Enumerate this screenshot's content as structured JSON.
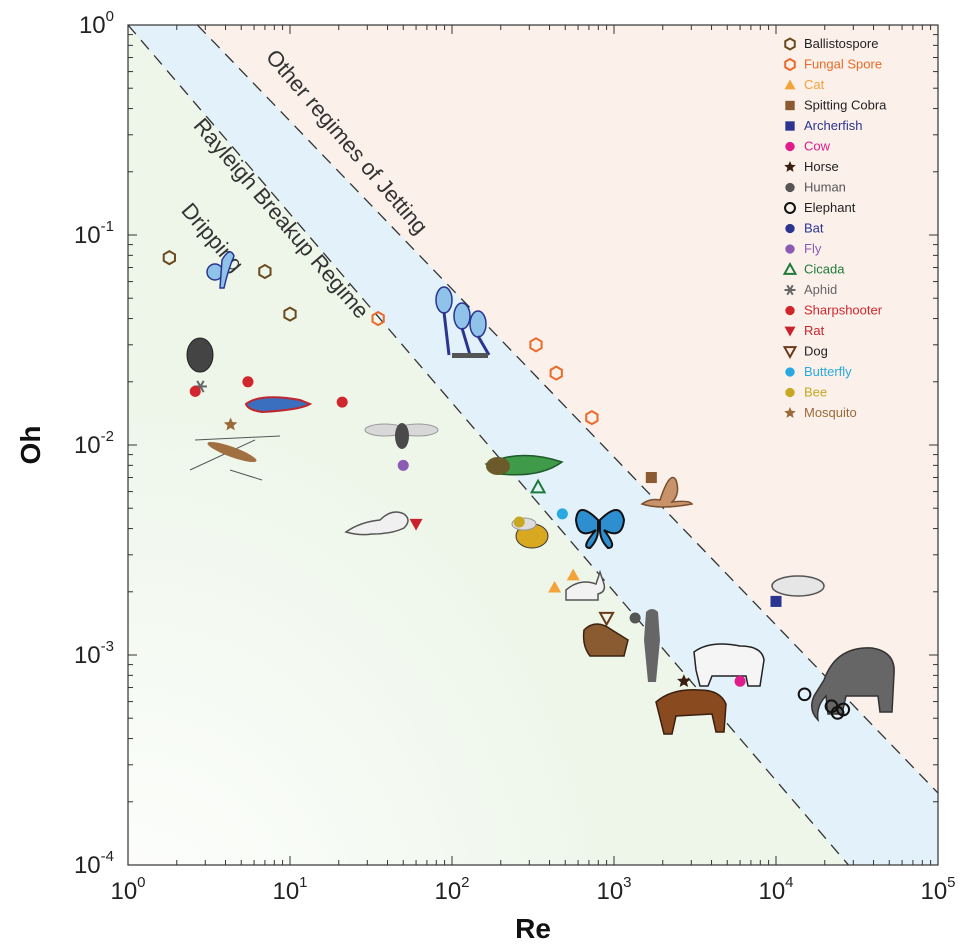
{
  "chart_data": {
    "type": "scatter",
    "xlabel": "Re",
    "ylabel": "Oh",
    "xscale": "log",
    "yscale": "log",
    "xlim": [
      1,
      100000
    ],
    "ylim": [
      0.0001,
      1
    ],
    "x_ticks": [
      {
        "base": "10",
        "exp": "0"
      },
      {
        "base": "10",
        "exp": "1"
      },
      {
        "base": "10",
        "exp": "2"
      },
      {
        "base": "10",
        "exp": "3"
      },
      {
        "base": "10",
        "exp": "4"
      },
      {
        "base": "10",
        "exp": "5"
      }
    ],
    "y_ticks": [
      {
        "base": "10",
        "exp": "-4"
      },
      {
        "base": "10",
        "exp": "-3"
      },
      {
        "base": "10",
        "exp": "-2"
      },
      {
        "base": "10",
        "exp": "-1"
      },
      {
        "base": "10",
        "exp": "0"
      }
    ],
    "regions": [
      {
        "label": "Dripping",
        "color": "#eef6ea"
      },
      {
        "label": "Rayleigh Breakup Regime",
        "color": "#e3f1fa"
      },
      {
        "label": "Other regimes of Jetting",
        "color": "#fbf1ea"
      }
    ],
    "boundaries": [
      {
        "x": [
          1,
          28000
        ],
        "y": [
          1,
          0.0001
        ]
      },
      {
        "x": [
          1,
          100000
        ],
        "y": [
          2.2,
          0.00022
        ]
      }
    ],
    "legend_position": "top-right",
    "series": [
      {
        "name": "Ballistospore",
        "marker": "hexagon-open",
        "color": "#6b4a1e",
        "points": [
          [
            1.8,
            0.078
          ],
          [
            7,
            0.067
          ],
          [
            10,
            0.042
          ]
        ]
      },
      {
        "name": "Fungal Spore",
        "marker": "hexagon-open",
        "color": "#ea6a2a",
        "points": [
          [
            35,
            0.04
          ],
          [
            330,
            0.03
          ],
          [
            440,
            0.022
          ],
          [
            730,
            0.0135
          ]
        ]
      },
      {
        "name": "Cat",
        "marker": "triangle",
        "color": "#f4a23a",
        "points": [
          [
            430,
            0.0021
          ],
          [
            560,
            0.0024
          ]
        ]
      },
      {
        "name": "Spitting Cobra",
        "marker": "square",
        "color": "#8c5a32",
        "points": [
          [
            1700,
            0.007
          ]
        ]
      },
      {
        "name": "Archerfish",
        "marker": "square",
        "color": "#2b3590",
        "points": [
          [
            10000,
            0.0018
          ]
        ]
      },
      {
        "name": "Cow",
        "marker": "circle",
        "color": "#e01c8a",
        "points": [
          [
            6000,
            0.00075
          ]
        ]
      },
      {
        "name": "Horse",
        "marker": "star",
        "color": "#3a1e10",
        "points": [
          [
            2700,
            0.00075
          ]
        ]
      },
      {
        "name": "Human",
        "marker": "circle",
        "color": "#555555",
        "points": [
          [
            1350,
            0.0015
          ]
        ]
      },
      {
        "name": "Elephant",
        "marker": "circle-open",
        "color": "#111111",
        "points": [
          [
            15000,
            0.00065
          ],
          [
            22000,
            0.00057
          ],
          [
            24000,
            0.00053
          ],
          [
            26000,
            0.00055
          ]
        ]
      },
      {
        "name": "Bat",
        "marker": "circle",
        "color": "#2b3590",
        "points": []
      },
      {
        "name": "Fly",
        "marker": "circle",
        "color": "#8b5ab3",
        "points": [
          [
            50,
            0.008
          ]
        ]
      },
      {
        "name": "Cicada",
        "marker": "triangle-open",
        "color": "#1e7a3a",
        "points": [
          [
            340,
            0.0063
          ]
        ]
      },
      {
        "name": "Aphid",
        "marker": "asterisk",
        "color": "#666666",
        "points": [
          [
            2.8,
            0.019
          ]
        ]
      },
      {
        "name": "Sharpshooter",
        "marker": "circle",
        "color": "#d0262e",
        "points": [
          [
            2.6,
            0.018
          ],
          [
            5.5,
            0.02
          ],
          [
            21,
            0.016
          ]
        ]
      },
      {
        "name": "Rat",
        "marker": "triangle-down",
        "color": "#c8232c",
        "points": [
          [
            60,
            0.0042
          ]
        ]
      },
      {
        "name": "Dog",
        "marker": "triangle-down-open",
        "color": "#6b3a1a",
        "points": [
          [
            900,
            0.0015
          ]
        ]
      },
      {
        "name": "Butterfly",
        "marker": "circle",
        "color": "#2aa9e0",
        "points": [
          [
            480,
            0.0047
          ]
        ]
      },
      {
        "name": "Bee",
        "marker": "circle",
        "color": "#c8a820",
        "points": [
          [
            260,
            0.0043
          ]
        ]
      },
      {
        "name": "Mosquito",
        "marker": "star",
        "color": "#9a6a3a",
        "points": [
          [
            4.3,
            0.0125
          ]
        ]
      }
    ]
  }
}
